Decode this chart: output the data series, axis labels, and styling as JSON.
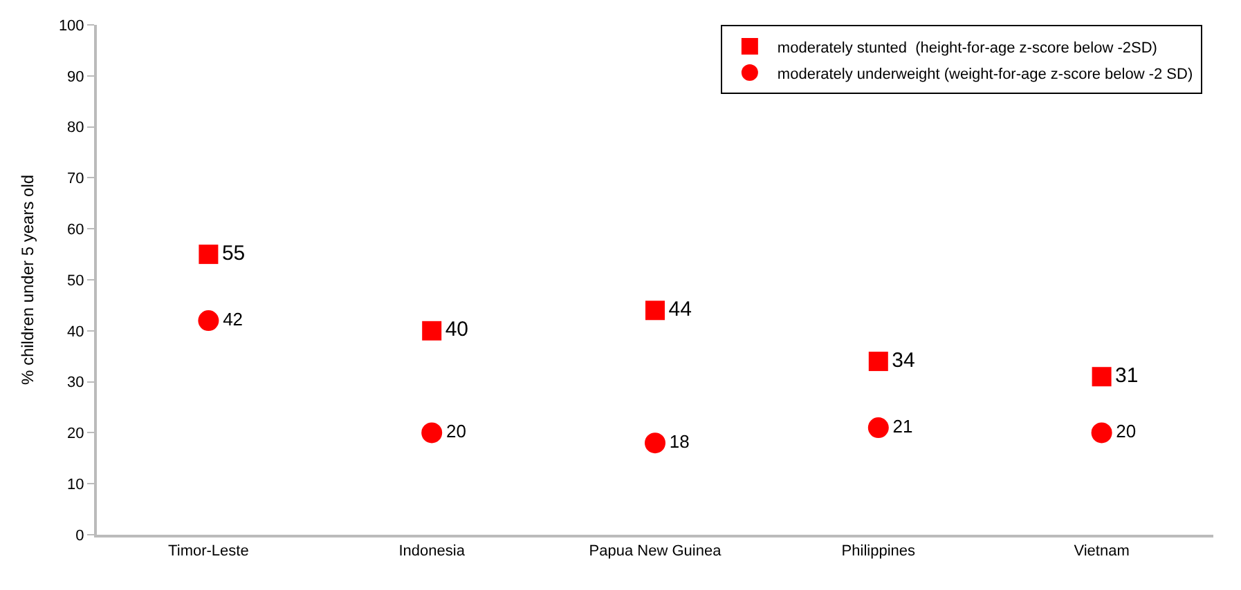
{
  "chart_data": {
    "type": "scatter",
    "ylabel": "% children under 5 years old",
    "categories": [
      "Timor-Leste",
      "Indonesia",
      "Papua New Guinea",
      "Philippines",
      "Vietnam"
    ],
    "series": [
      {
        "name": "moderately stunted  (height-for-age z-score below -2SD)",
        "color": "#ff0000",
        "marker": "square",
        "values": [
          55,
          40,
          44,
          34,
          31
        ]
      },
      {
        "name": "moderately underweight (weight-for-age z-score below -2 SD)",
        "color": "#ff0000",
        "marker": "circle",
        "values": [
          42,
          20,
          18,
          21,
          20
        ]
      }
    ],
    "ylim": [
      0,
      100
    ],
    "yticks": [
      0,
      10,
      20,
      30,
      40,
      50,
      60,
      70,
      80,
      90,
      100
    ],
    "legend": "top right",
    "data_labels": true
  }
}
